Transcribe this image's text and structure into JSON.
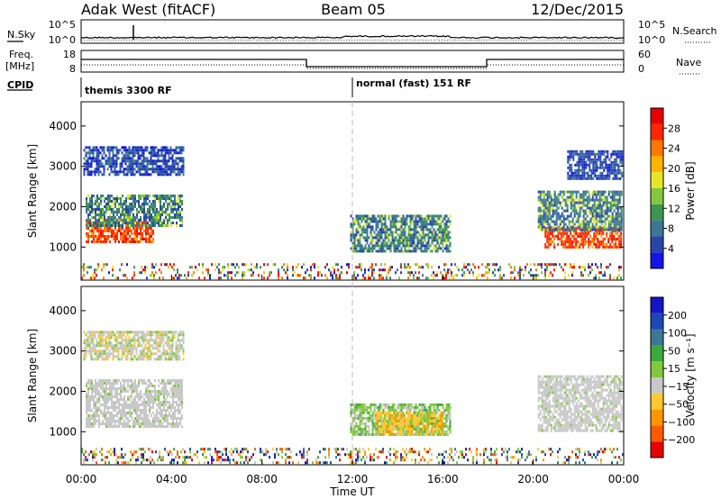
{
  "header": {
    "station": "Adak West (fitACF)",
    "beam": "Beam 05",
    "date": "12/Dec/2015"
  },
  "nsky_panel": {
    "left_label": "N.Sky",
    "right_label": "N.Search",
    "ticks_left": [
      "10^5",
      "10^0"
    ],
    "ticks_right": [
      "10^5",
      "10^0"
    ]
  },
  "freq_panel": {
    "left_label_top": "Freq.",
    "left_label_bottom": "[MHz]",
    "right_label": "Nave",
    "ticks_left": [
      "18",
      "8"
    ],
    "ticks_right": [
      "60",
      "0"
    ]
  },
  "cpid": {
    "label": "CPID",
    "programs": [
      {
        "name": "themis 3300 RF",
        "start_hour": 0,
        "end_hour": 12
      },
      {
        "name": "normal (fast) 151 RF",
        "start_hour": 12,
        "end_hour": 24
      }
    ]
  },
  "colors": {
    "power": [
      "#1414e6",
      "#2846aa",
      "#3c7896",
      "#3c9650",
      "#82c83c",
      "#e6e628",
      "#ffb400",
      "#ff7800",
      "#ff2800",
      "#e60000"
    ],
    "velocity": [
      "#e60000",
      "#ff5a00",
      "#ff9600",
      "#ffc832",
      "#c8c8c8",
      "#82c83c",
      "#3caa3c",
      "#3c7896",
      "#1e46b4",
      "#1414c8"
    ],
    "dashed_line": "#bbbbbb"
  },
  "chart_data": [
    {
      "type": "heatmap",
      "name": "power",
      "xlabel": "",
      "ylabel": "Slant Range [km]",
      "colorbar_label": "Power [dB]",
      "colorbar_ticks": [
        "28",
        "24",
        "20",
        "16",
        "12",
        "8",
        "4"
      ],
      "xlim": [
        0,
        24
      ],
      "ylim": [
        180,
        4600
      ],
      "yticks": [
        "1000",
        "2000",
        "3000",
        "4000"
      ],
      "regions": [
        {
          "x": [
            0.2,
            3.2
          ],
          "y": [
            1150,
            1700
          ],
          "level": "high"
        },
        {
          "x": [
            0.2,
            4.5
          ],
          "y": [
            1500,
            2300
          ],
          "level": "medium"
        },
        {
          "x": [
            0.1,
            4.5
          ],
          "y": [
            2800,
            3500
          ],
          "level": "low"
        },
        {
          "x": [
            11.9,
            16.3
          ],
          "y": [
            900,
            1800
          ],
          "level": "medium"
        },
        {
          "x": [
            20.5,
            23.9
          ],
          "y": [
            1000,
            1500
          ],
          "level": "high"
        },
        {
          "x": [
            20.2,
            23.9
          ],
          "y": [
            1400,
            2400
          ],
          "level": "medium"
        },
        {
          "x": [
            21.5,
            23.9
          ],
          "y": [
            2700,
            3400
          ],
          "level": "low"
        },
        {
          "x": [
            0.0,
            24.0
          ],
          "y": [
            200,
            600
          ],
          "level": "scatter"
        }
      ]
    },
    {
      "type": "heatmap",
      "name": "velocity",
      "xlabel": "Time UT",
      "ylabel": "Slant Range [km]",
      "colorbar_label": "Velocity [m s⁻¹]",
      "colorbar_ticks": [
        "200",
        "100",
        "50",
        "15",
        "−15",
        "−50",
        "−100",
        "−200"
      ],
      "xlim": [
        0,
        24
      ],
      "ylim": [
        180,
        4600
      ],
      "yticks": [
        "1000",
        "2000",
        "3000",
        "4000"
      ],
      "xticks": [
        "00:00",
        "04:00",
        "08:00",
        "12:00",
        "16:00",
        "20:00",
        "00:00"
      ],
      "regions": [
        {
          "x": [
            0.2,
            4.5
          ],
          "y": [
            1150,
            2300
          ],
          "level": "ground"
        },
        {
          "x": [
            0.1,
            4.5
          ],
          "y": [
            2800,
            3500
          ],
          "level": "mixed"
        },
        {
          "x": [
            11.9,
            16.3
          ],
          "y": [
            900,
            1700
          ],
          "level": "positive"
        },
        {
          "x": [
            13.0,
            16.0
          ],
          "y": [
            900,
            1500
          ],
          "level": "negative"
        },
        {
          "x": [
            20.2,
            23.9
          ],
          "y": [
            1000,
            2400
          ],
          "level": "ground"
        },
        {
          "x": [
            0.0,
            24.0
          ],
          "y": [
            200,
            600
          ],
          "level": "scatter"
        }
      ]
    }
  ]
}
